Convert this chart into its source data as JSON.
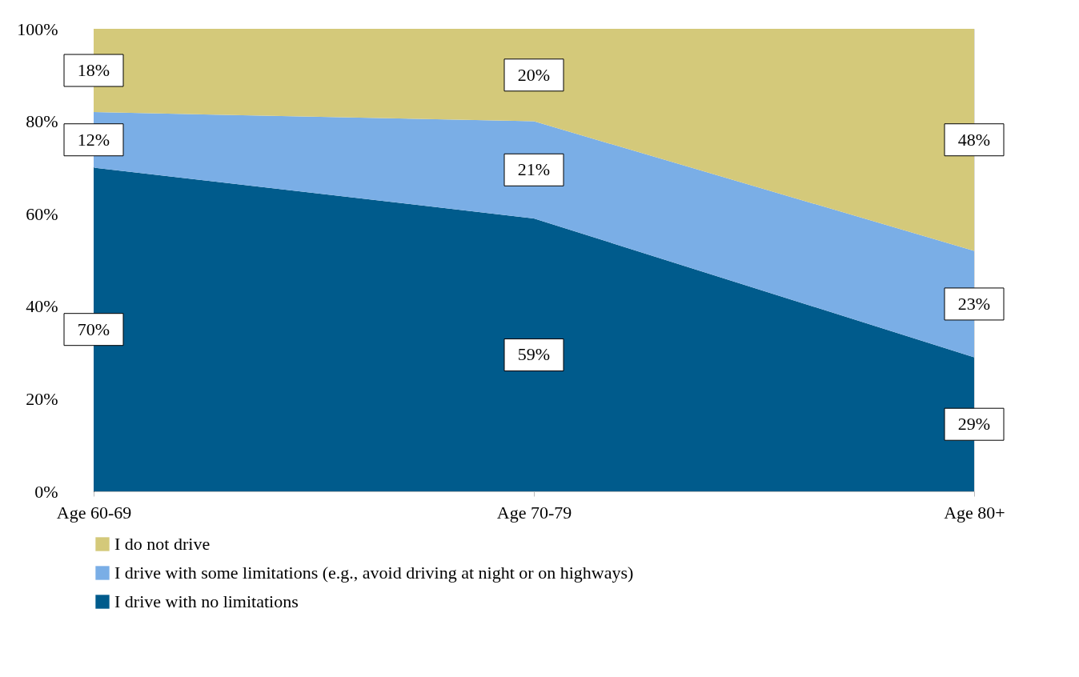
{
  "chart_data": {
    "type": "area",
    "stacked": true,
    "categories": [
      "Age 60-69",
      "Age 70-79",
      "Age 80+"
    ],
    "series": [
      {
        "name": "I drive with no limitations",
        "color": "#005b8c",
        "values": [
          70,
          59,
          29
        ]
      },
      {
        "name": "I drive with some limitations (e.g., avoid driving at night or on highways)",
        "color": "#7aaee6",
        "values": [
          12,
          21,
          23
        ]
      },
      {
        "name": "I do not drive",
        "color": "#d4c97a",
        "values": [
          18,
          20,
          48
        ]
      }
    ],
    "ylim": [
      0,
      100
    ],
    "yticks": [
      {
        "value": 0,
        "label": "0%"
      },
      {
        "value": 20,
        "label": "20%"
      },
      {
        "value": 40,
        "label": "40%"
      },
      {
        "value": 60,
        "label": "60%"
      },
      {
        "value": 80,
        "label": "80%"
      },
      {
        "value": 100,
        "label": "100%"
      }
    ],
    "value_labels": [
      [
        "70%",
        "59%",
        "29%"
      ],
      [
        "12%",
        "21%",
        "23%"
      ],
      [
        "18%",
        "20%",
        "48%"
      ]
    ],
    "grid": false,
    "legend": "bottom"
  }
}
